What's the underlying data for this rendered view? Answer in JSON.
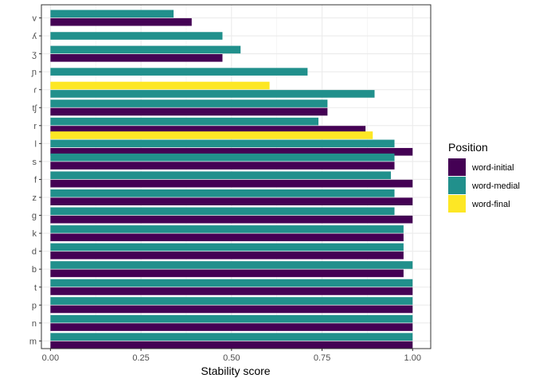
{
  "chart_data": {
    "type": "bar",
    "orientation": "horizontal",
    "xlabel": "Stability score",
    "ylabel": "",
    "xlim": [
      -0.025,
      1.05
    ],
    "x_ticks": [
      0.0,
      0.25,
      0.5,
      0.75,
      1.0
    ],
    "x_tick_labels": [
      "0.00",
      "0.25",
      "0.50",
      "0.75",
      "1.00"
    ],
    "grid": true,
    "categories": [
      "v",
      "ʎ",
      "ʒ",
      "ɲ",
      "ɾ",
      "tʃ",
      "r",
      "l",
      "s",
      "f",
      "z",
      "g",
      "k",
      "d",
      "b",
      "t",
      "p",
      "n",
      "m"
    ],
    "series": [
      {
        "name": "word-initial",
        "color": "#440154",
        "values": [
          0.39,
          null,
          0.475,
          null,
          null,
          0.765,
          0.87,
          1.0,
          0.95,
          1.0,
          1.0,
          1.0,
          0.975,
          0.975,
          0.975,
          1.0,
          1.0,
          1.0,
          1.0
        ]
      },
      {
        "name": "word-medial",
        "color": "#21908C",
        "values": [
          0.34,
          0.475,
          0.525,
          0.71,
          0.895,
          0.765,
          0.74,
          0.95,
          0.95,
          0.94,
          0.95,
          0.95,
          0.975,
          0.975,
          1.0,
          1.0,
          1.0,
          1.0,
          1.0
        ]
      },
      {
        "name": "word-final",
        "color": "#FDE725",
        "values": [
          null,
          null,
          null,
          null,
          0.605,
          null,
          null,
          0.89,
          null,
          null,
          null,
          null,
          null,
          null,
          null,
          null,
          null,
          null,
          null
        ]
      }
    ],
    "legend": {
      "title": "Position",
      "position": "right"
    }
  }
}
